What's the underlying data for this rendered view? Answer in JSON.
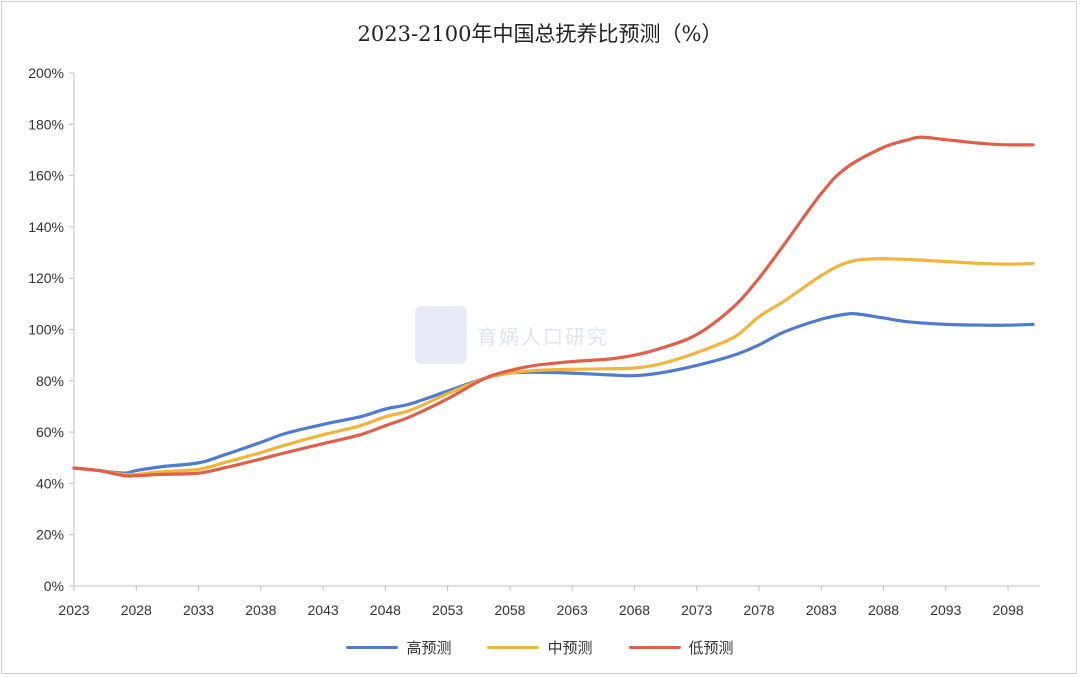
{
  "chart_data": {
    "type": "line",
    "title": "2023-2100年中国总抚养比预测（%）",
    "xlabel": "",
    "ylabel": "",
    "xlim": [
      2023,
      2100
    ],
    "ylim": [
      0,
      200
    ],
    "x_ticks": [
      "2023",
      "2028",
      "2033",
      "2038",
      "2043",
      "2048",
      "2053",
      "2058",
      "2063",
      "2068",
      "2073",
      "2078",
      "2083",
      "2088",
      "2093",
      "2098"
    ],
    "y_ticks": [
      "0%",
      "20%",
      "40%",
      "60%",
      "80%",
      "100%",
      "120%",
      "140%",
      "160%",
      "180%",
      "200%"
    ],
    "grid": false,
    "legend_position": "bottom",
    "watermark": "育娲人口研究",
    "series": [
      {
        "name": "高预测",
        "color": "#4f7bd0",
        "points": [
          [
            2023,
            46
          ],
          [
            2025,
            45
          ],
          [
            2027,
            44
          ],
          [
            2028,
            45
          ],
          [
            2030,
            46.5
          ],
          [
            2033,
            48
          ],
          [
            2035,
            51
          ],
          [
            2038,
            56
          ],
          [
            2040,
            59.5
          ],
          [
            2043,
            63
          ],
          [
            2046,
            66
          ],
          [
            2048,
            69
          ],
          [
            2050,
            71
          ],
          [
            2053,
            76
          ],
          [
            2056,
            81
          ],
          [
            2058,
            83
          ],
          [
            2060,
            83.3
          ],
          [
            2063,
            83
          ],
          [
            2066,
            82.3
          ],
          [
            2068,
            82
          ],
          [
            2070,
            83
          ],
          [
            2073,
            86
          ],
          [
            2076,
            90
          ],
          [
            2078,
            94
          ],
          [
            2080,
            99
          ],
          [
            2083,
            104
          ],
          [
            2085,
            106
          ],
          [
            2086,
            106
          ],
          [
            2088,
            104.5
          ],
          [
            2090,
            103
          ],
          [
            2093,
            102
          ],
          [
            2096,
            101.7
          ],
          [
            2098,
            101.7
          ],
          [
            2100,
            102
          ]
        ]
      },
      {
        "name": "中预测",
        "color": "#f0b53c",
        "points": [
          [
            2023,
            46
          ],
          [
            2025,
            45
          ],
          [
            2027,
            43.5
          ],
          [
            2028,
            43.5
          ],
          [
            2030,
            44.5
          ],
          [
            2033,
            45.5
          ],
          [
            2035,
            48
          ],
          [
            2038,
            52
          ],
          [
            2040,
            55
          ],
          [
            2043,
            59
          ],
          [
            2046,
            62.5
          ],
          [
            2048,
            66
          ],
          [
            2050,
            68.5
          ],
          [
            2053,
            75
          ],
          [
            2056,
            81
          ],
          [
            2058,
            83
          ],
          [
            2060,
            84
          ],
          [
            2063,
            84.5
          ],
          [
            2066,
            84.7
          ],
          [
            2068,
            85
          ],
          [
            2070,
            86.5
          ],
          [
            2073,
            91
          ],
          [
            2076,
            97
          ],
          [
            2078,
            105
          ],
          [
            2080,
            111
          ],
          [
            2083,
            121
          ],
          [
            2085,
            126
          ],
          [
            2087,
            127.5
          ],
          [
            2090,
            127.3
          ],
          [
            2093,
            126.5
          ],
          [
            2096,
            125.7
          ],
          [
            2098,
            125.5
          ],
          [
            2100,
            125.7
          ]
        ]
      },
      {
        "name": "低预测",
        "color": "#e05f4b",
        "points": [
          [
            2023,
            46
          ],
          [
            2025,
            45
          ],
          [
            2027,
            43
          ],
          [
            2028,
            43
          ],
          [
            2030,
            43.5
          ],
          [
            2033,
            44
          ],
          [
            2035,
            46
          ],
          [
            2038,
            49.5
          ],
          [
            2040,
            52
          ],
          [
            2043,
            55.5
          ],
          [
            2046,
            59
          ],
          [
            2048,
            62.5
          ],
          [
            2050,
            66
          ],
          [
            2053,
            73
          ],
          [
            2056,
            81
          ],
          [
            2058,
            84
          ],
          [
            2060,
            86
          ],
          [
            2063,
            87.5
          ],
          [
            2066,
            88.5
          ],
          [
            2068,
            90
          ],
          [
            2070,
            92.5
          ],
          [
            2073,
            98
          ],
          [
            2076,
            109
          ],
          [
            2078,
            120
          ],
          [
            2080,
            133
          ],
          [
            2083,
            153
          ],
          [
            2085,
            163
          ],
          [
            2088,
            171
          ],
          [
            2090,
            174
          ],
          [
            2091,
            175
          ],
          [
            2093,
            174
          ],
          [
            2096,
            172.5
          ],
          [
            2098,
            172
          ],
          [
            2100,
            172
          ]
        ]
      }
    ]
  }
}
